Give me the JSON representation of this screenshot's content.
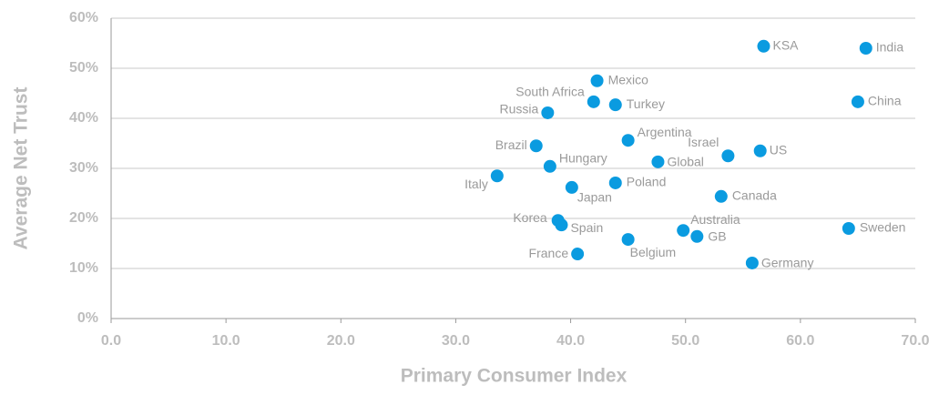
{
  "chart_data": {
    "type": "scatter",
    "xlabel": "Primary Consumer Index",
    "ylabel": "Average Net Trust",
    "color": "#0a9be0",
    "labels": [
      "KSA",
      "India",
      "China",
      "Mexico",
      "South Africa",
      "Turkey",
      "Russia",
      "Argentina",
      "Brazil",
      "Israel",
      "US",
      "Hungary",
      "Global",
      "Italy",
      "Japan",
      "Poland",
      "Canada",
      "Korea",
      "Spain",
      "Australia",
      "GB",
      "Sweden",
      "Belgium",
      "France",
      "Germany"
    ],
    "x": [
      56.8,
      65.7,
      65.0,
      42.3,
      42.0,
      43.9,
      38.0,
      45.0,
      37.0,
      53.7,
      56.5,
      38.2,
      47.6,
      33.6,
      40.1,
      43.9,
      53.1,
      38.9,
      39.2,
      49.8,
      51.0,
      64.2,
      45.0,
      40.6,
      55.8
    ],
    "values": [
      54.4,
      54.0,
      43.3,
      47.5,
      43.3,
      42.7,
      41.1,
      35.6,
      34.5,
      32.5,
      33.5,
      30.4,
      31.3,
      28.5,
      26.2,
      27.1,
      24.4,
      19.6,
      18.7,
      17.6,
      16.4,
      18.0,
      15.8,
      12.9,
      11.1
    ],
    "xlim": [
      0,
      70
    ],
    "ylim": [
      0,
      60
    ],
    "xticks": [
      {
        "value": 0,
        "label": "0.0"
      },
      {
        "value": 10,
        "label": "10.0"
      },
      {
        "value": 20,
        "label": "20.0"
      },
      {
        "value": 30,
        "label": "30.0"
      },
      {
        "value": 40,
        "label": "40.0"
      },
      {
        "value": 50,
        "label": "50.0"
      },
      {
        "value": 60,
        "label": "60.0"
      },
      {
        "value": 70,
        "label": "70.0"
      }
    ],
    "yticks": [
      {
        "value": 0,
        "label": "0%"
      },
      {
        "value": 10,
        "label": "10%"
      },
      {
        "value": 20,
        "label": "20%"
      },
      {
        "value": 30,
        "label": "30%"
      },
      {
        "value": 40,
        "label": "40%"
      },
      {
        "value": 50,
        "label": "50%"
      },
      {
        "value": 60,
        "label": "60%"
      }
    ],
    "grid": true
  }
}
